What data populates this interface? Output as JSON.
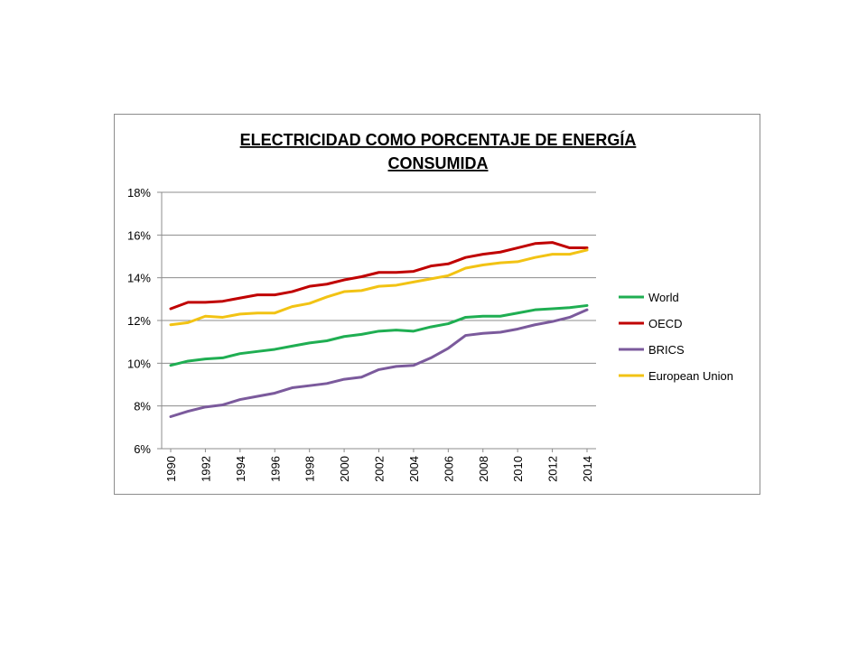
{
  "chart_data": {
    "type": "line",
    "title_lines": [
      "ELECTRICIDAD COMO PORCENTAJE DE ENERGÍA",
      "CONSUMIDA"
    ],
    "xlabel": "",
    "ylabel": "",
    "x": [
      1990,
      1991,
      1992,
      1993,
      1994,
      1995,
      1996,
      1997,
      1998,
      1999,
      2000,
      2001,
      2002,
      2003,
      2004,
      2005,
      2006,
      2007,
      2008,
      2009,
      2010,
      2011,
      2012,
      2013,
      2014
    ],
    "x_tick_labels": [
      "1990",
      "1992",
      "1994",
      "1996",
      "1998",
      "2000",
      "2002",
      "2004",
      "2006",
      "2008",
      "2010",
      "2012",
      "2014"
    ],
    "ylim": [
      6,
      18
    ],
    "y_tick_values": [
      6,
      8,
      10,
      12,
      14,
      16,
      18
    ],
    "y_tick_labels": [
      "6%",
      "8%",
      "10%",
      "12%",
      "14%",
      "16%",
      "18%"
    ],
    "grid": "horizontal",
    "legend_position": "right",
    "series": [
      {
        "name": "World",
        "color": "#1fae52",
        "values": [
          9.9,
          10.1,
          10.2,
          10.25,
          10.45,
          10.55,
          10.65,
          10.8,
          10.95,
          11.05,
          11.25,
          11.35,
          11.5,
          11.55,
          11.5,
          11.7,
          11.85,
          12.15,
          12.2,
          12.2,
          12.35,
          12.5,
          12.55,
          12.6,
          12.7
        ]
      },
      {
        "name": "OECD",
        "color": "#c00000",
        "values": [
          12.55,
          12.85,
          12.85,
          12.9,
          13.05,
          13.2,
          13.2,
          13.35,
          13.6,
          13.7,
          13.9,
          14.05,
          14.25,
          14.25,
          14.3,
          14.55,
          14.65,
          14.95,
          15.1,
          15.2,
          15.4,
          15.6,
          15.65,
          15.4,
          15.4
        ]
      },
      {
        "name": "BRICS",
        "color": "#7b5a9c",
        "values": [
          7.5,
          7.75,
          7.95,
          8.05,
          8.3,
          8.45,
          8.6,
          8.85,
          8.95,
          9.05,
          9.25,
          9.35,
          9.7,
          9.85,
          9.9,
          10.25,
          10.7,
          11.3,
          11.4,
          11.45,
          11.6,
          11.8,
          11.95,
          12.15,
          12.5
        ]
      },
      {
        "name": "European Union",
        "color": "#f2c314",
        "values": [
          11.8,
          11.9,
          12.2,
          12.15,
          12.3,
          12.35,
          12.35,
          12.65,
          12.8,
          13.1,
          13.35,
          13.4,
          13.6,
          13.65,
          13.8,
          13.95,
          14.1,
          14.45,
          14.6,
          14.7,
          14.75,
          14.95,
          15.1,
          15.1,
          15.3
        ]
      }
    ]
  }
}
